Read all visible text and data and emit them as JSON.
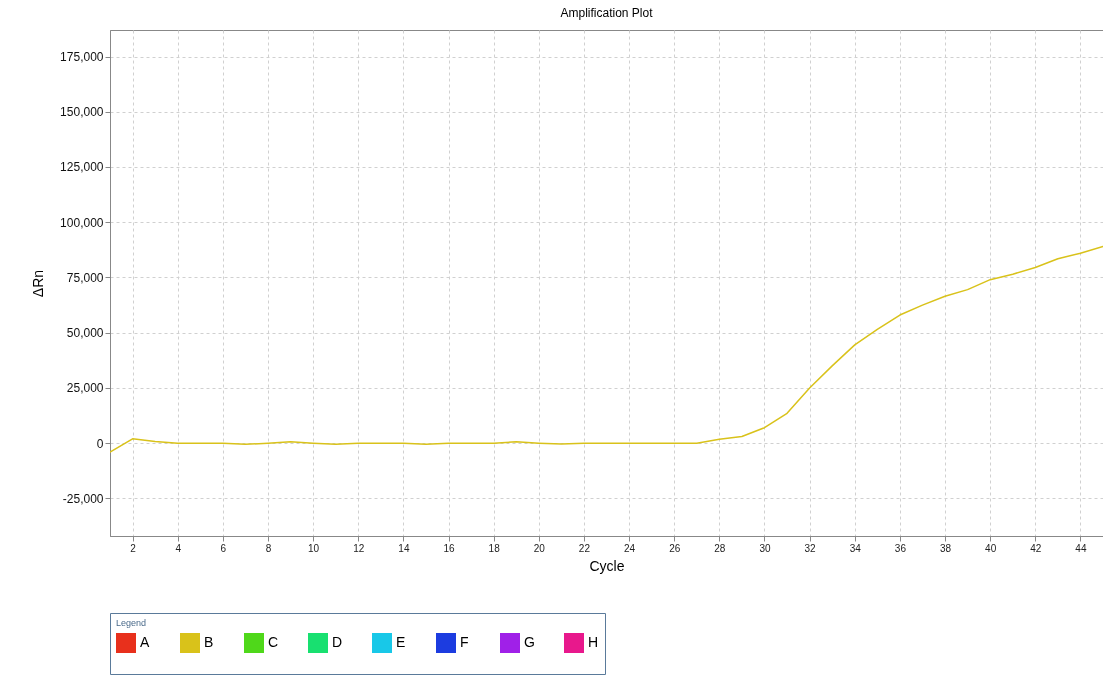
{
  "chart_data": {
    "type": "line",
    "title": "Amplification Plot",
    "xlabel": "Cycle",
    "ylabel": "ΔRn",
    "legend_title": "Legend",
    "legend": "bottom",
    "grid": true,
    "line_style": "solid",
    "marker": "none",
    "x": [
      1,
      2,
      3,
      4,
      5,
      6,
      7,
      8,
      9,
      10,
      11,
      12,
      13,
      14,
      15,
      16,
      17,
      18,
      19,
      20,
      21,
      22,
      23,
      24,
      25,
      26,
      27,
      28,
      29,
      30,
      31,
      32,
      33,
      34,
      35,
      36,
      37,
      38,
      39,
      40,
      41,
      42,
      43,
      44,
      45
    ],
    "xlim": [
      1,
      45
    ],
    "xticks": [
      2,
      4,
      6,
      8,
      10,
      12,
      14,
      16,
      18,
      20,
      22,
      24,
      26,
      28,
      30,
      32,
      34,
      36,
      38,
      40,
      42,
      44
    ],
    "ylim": [
      -42000,
      187000
    ],
    "yticks": [
      {
        "value": -25000,
        "label": "-25,000"
      },
      0,
      {
        "value": 25000,
        "label": "25,000"
      },
      {
        "value": 50000,
        "label": "50,000"
      },
      {
        "value": 75000,
        "label": "75,000"
      },
      {
        "value": 100000,
        "label": "100,000"
      },
      {
        "value": 125000,
        "label": "125,000"
      },
      {
        "value": 150000,
        "label": "150,000"
      },
      {
        "value": 175000,
        "label": "175,000"
      }
    ],
    "series": [
      {
        "name": "A",
        "color": "#e8301c",
        "values": [
          null,
          null,
          null,
          null,
          null,
          null,
          null,
          null,
          null,
          null,
          null,
          null,
          null,
          null,
          null,
          null,
          null,
          null,
          null,
          null,
          null,
          null,
          null,
          null,
          null,
          null,
          null,
          null,
          null,
          null,
          null,
          null,
          null,
          null,
          null,
          null,
          null,
          null,
          null,
          null,
          null,
          null,
          null,
          null,
          null
        ]
      },
      {
        "name": "B",
        "color": "#d9c21a",
        "values": [
          -4000,
          2000,
          800,
          0,
          0,
          0,
          -500,
          0,
          600,
          0,
          -500,
          0,
          0,
          0,
          -500,
          0,
          0,
          0,
          600,
          0,
          -400,
          0,
          0,
          0,
          0,
          0,
          0,
          1800,
          3000,
          7000,
          13500,
          25000,
          35000,
          44500,
          51500,
          58000,
          62500,
          66500,
          69500,
          74000,
          76500,
          79500,
          83500,
          86000,
          89000
        ]
      },
      {
        "name": "C",
        "color": "#4fd81a",
        "values": [
          null,
          null,
          null,
          null,
          null,
          null,
          null,
          null,
          null,
          null,
          null,
          null,
          null,
          null,
          null,
          null,
          null,
          null,
          null,
          null,
          null,
          null,
          null,
          null,
          null,
          null,
          null,
          null,
          null,
          null,
          null,
          null,
          null,
          null,
          null,
          null,
          null,
          null,
          null,
          null,
          null,
          null,
          null,
          null,
          null
        ]
      },
      {
        "name": "D",
        "color": "#18e070",
        "values": [
          null,
          null,
          null,
          null,
          null,
          null,
          null,
          null,
          null,
          null,
          null,
          null,
          null,
          null,
          null,
          null,
          null,
          null,
          null,
          null,
          null,
          null,
          null,
          null,
          null,
          null,
          null,
          null,
          null,
          null,
          null,
          null,
          null,
          null,
          null,
          null,
          null,
          null,
          null,
          null,
          null,
          null,
          null,
          null,
          null
        ]
      },
      {
        "name": "E",
        "color": "#18c8e8",
        "values": [
          null,
          null,
          null,
          null,
          null,
          null,
          null,
          null,
          null,
          null,
          null,
          null,
          null,
          null,
          null,
          null,
          null,
          null,
          null,
          null,
          null,
          null,
          null,
          null,
          null,
          null,
          null,
          null,
          null,
          null,
          null,
          null,
          null,
          null,
          null,
          null,
          null,
          null,
          null,
          null,
          null,
          null,
          null,
          null,
          null
        ]
      },
      {
        "name": "F",
        "color": "#1c3ce0",
        "values": [
          null,
          null,
          null,
          null,
          null,
          null,
          null,
          null,
          null,
          null,
          null,
          null,
          null,
          null,
          null,
          null,
          null,
          null,
          null,
          null,
          null,
          null,
          null,
          null,
          null,
          null,
          null,
          null,
          null,
          null,
          null,
          null,
          null,
          null,
          null,
          null,
          null,
          null,
          null,
          null,
          null,
          null,
          null,
          null,
          null
        ]
      },
      {
        "name": "G",
        "color": "#a020e8",
        "values": [
          null,
          null,
          null,
          null,
          null,
          null,
          null,
          null,
          null,
          null,
          null,
          null,
          null,
          null,
          null,
          null,
          null,
          null,
          null,
          null,
          null,
          null,
          null,
          null,
          null,
          null,
          null,
          null,
          null,
          null,
          null,
          null,
          null,
          null,
          null,
          null,
          null,
          null,
          null,
          null,
          null,
          null,
          null,
          null,
          null
        ]
      },
      {
        "name": "H",
        "color": "#e8188c",
        "values": [
          null,
          null,
          null,
          null,
          null,
          null,
          null,
          null,
          null,
          null,
          null,
          null,
          null,
          null,
          null,
          null,
          null,
          null,
          null,
          null,
          null,
          null,
          null,
          null,
          null,
          null,
          null,
          null,
          null,
          null,
          null,
          null,
          null,
          null,
          null,
          null,
          null,
          null,
          null,
          null,
          null,
          null,
          null,
          null,
          null
        ]
      }
    ]
  }
}
